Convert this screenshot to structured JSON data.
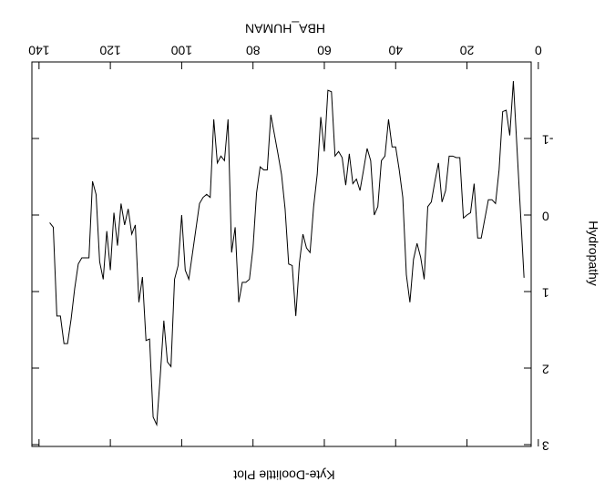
{
  "chart_data": {
    "type": "line",
    "title": "Kyte-Doolittle Plot",
    "xlabel": "HBA_HUMAN",
    "ylabel": "Hydropathy",
    "color": "#000000",
    "rotated": true,
    "x": [
      4,
      7,
      8,
      9,
      10,
      11,
      12,
      13,
      14,
      16,
      17,
      18,
      19,
      20,
      21,
      22,
      23,
      24,
      25,
      26,
      27,
      28,
      29,
      30,
      31,
      32,
      33,
      34,
      35,
      36,
      37,
      38,
      39,
      40,
      41,
      42,
      43,
      44,
      45,
      46,
      47,
      48,
      49,
      50,
      51,
      52,
      53,
      54,
      55,
      56,
      57,
      58,
      59,
      60,
      61,
      62,
      63,
      64,
      65,
      66,
      67,
      68,
      69,
      70,
      71,
      72,
      73,
      75,
      76,
      77,
      78,
      79,
      80,
      81,
      82,
      83,
      84,
      85,
      86,
      87,
      88,
      89,
      90,
      91,
      92,
      93,
      94,
      95,
      98,
      99,
      100,
      101,
      102,
      103,
      104,
      105,
      106,
      107,
      108,
      109,
      110,
      111,
      112,
      113,
      114,
      115,
      116,
      117,
      118,
      119,
      120,
      121,
      122,
      123,
      124,
      125,
      126,
      127,
      128,
      129,
      130,
      131,
      132,
      133,
      134,
      135,
      136,
      137
    ],
    "values": [
      0.82,
      -1.75,
      -1.04,
      -1.37,
      -1.35,
      -0.59,
      -0.15,
      -0.2,
      -0.2,
      0.3,
      0.3,
      -0.41,
      -0.03,
      0,
      0.04,
      -0.75,
      -0.75,
      -0.77,
      -0.77,
      -0.32,
      -0.17,
      -0.68,
      -0.44,
      -0.17,
      -0.11,
      0.84,
      0.55,
      0.37,
      0.58,
      1.14,
      0.78,
      -0.23,
      -0.59,
      -0.89,
      -0.89,
      -1.25,
      -0.77,
      -0.71,
      -0.11,
      0,
      -0.71,
      -0.87,
      -0.59,
      -0.32,
      -0.47,
      -0.41,
      -0.8,
      -0.39,
      -0.75,
      -0.83,
      -0.77,
      -1.61,
      -1.63,
      -0.83,
      -1.28,
      -0.53,
      -0.11,
      0.49,
      0.43,
      0.25,
      0.63,
      1.32,
      0.66,
      0.64,
      -0.08,
      -0.53,
      -0.8,
      -1.31,
      -0.59,
      -0.59,
      -0.63,
      -0.29,
      0.43,
      0.84,
      0.88,
      0.88,
      1.14,
      0.16,
      0.49,
      -1.25,
      -0.71,
      -0.77,
      -0.68,
      -1.25,
      -0.23,
      -0.27,
      -0.23,
      -0.15,
      0.84,
      0.72,
      0,
      0.66,
      0.84,
      1.98,
      1.92,
      1.38,
      2.1,
      2.74,
      2.64,
      1.62,
      1.64,
      0.81,
      1.14,
      0.13,
      0.25,
      -0.08,
      0.13,
      -0.15,
      0.4,
      -0.03,
      0.72,
      0.21,
      0.84,
      0.61,
      -0.27,
      -0.44,
      0.56,
      0.56,
      0.56,
      0.64,
      0.96,
      1.36,
      1.68,
      1.68,
      1.32,
      1.32,
      0.16,
      0.1
    ],
    "xlim": [
      2,
      142
    ],
    "xticks": [
      0,
      20,
      40,
      60,
      80,
      100,
      120,
      140
    ],
    "ylim": [
      -2,
      3
    ],
    "yticks": [
      -1,
      0,
      1,
      2,
      3
    ]
  }
}
